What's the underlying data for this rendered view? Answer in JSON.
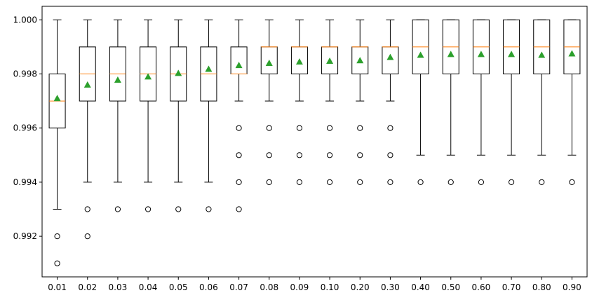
{
  "chart_data": {
    "type": "box",
    "title": "",
    "xlabel": "",
    "ylabel": "",
    "ylim": [
      0.9905,
      1.0005
    ],
    "grid": false,
    "yticks": [
      "0.992",
      "0.994",
      "0.996",
      "0.998",
      "1.000"
    ],
    "colors": {
      "median": "#ff7f0e",
      "mean": "#2ca02c",
      "box": "#000000"
    },
    "categories": [
      "0.01",
      "0.02",
      "0.03",
      "0.04",
      "0.05",
      "0.06",
      "0.07",
      "0.08",
      "0.09",
      "0.10",
      "0.20",
      "0.30",
      "0.40",
      "0.50",
      "0.60",
      "0.70",
      "0.80",
      "0.90"
    ],
    "boxes": [
      {
        "category": "0.01",
        "whisker_low": 0.993,
        "q1": 0.996,
        "median": 0.997,
        "q3": 0.998,
        "whisker_high": 1.0,
        "mean": 0.9971,
        "outliers": [
          0.992,
          0.991
        ]
      },
      {
        "category": "0.02",
        "whisker_low": 0.994,
        "q1": 0.997,
        "median": 0.998,
        "q3": 0.999,
        "whisker_high": 1.0,
        "mean": 0.9976,
        "outliers": [
          0.993,
          0.992
        ]
      },
      {
        "category": "0.03",
        "whisker_low": 0.994,
        "q1": 0.997,
        "median": 0.998,
        "q3": 0.999,
        "whisker_high": 1.0,
        "mean": 0.99778,
        "outliers": [
          0.993
        ]
      },
      {
        "category": "0.04",
        "whisker_low": 0.994,
        "q1": 0.997,
        "median": 0.998,
        "q3": 0.999,
        "whisker_high": 1.0,
        "mean": 0.9979,
        "outliers": [
          0.993
        ]
      },
      {
        "category": "0.05",
        "whisker_low": 0.994,
        "q1": 0.997,
        "median": 0.998,
        "q3": 0.999,
        "whisker_high": 1.0,
        "mean": 0.99803,
        "outliers": [
          0.993
        ]
      },
      {
        "category": "0.06",
        "whisker_low": 0.994,
        "q1": 0.997,
        "median": 0.998,
        "q3": 0.999,
        "whisker_high": 1.0,
        "mean": 0.99818,
        "outliers": [
          0.993
        ]
      },
      {
        "category": "0.07",
        "whisker_low": 0.997,
        "q1": 0.998,
        "median": 0.998,
        "q3": 0.999,
        "whisker_high": 1.0,
        "mean": 0.99832,
        "outliers": [
          0.996,
          0.995,
          0.994,
          0.993
        ]
      },
      {
        "category": "0.08",
        "whisker_low": 0.997,
        "q1": 0.998,
        "median": 0.999,
        "q3": 0.999,
        "whisker_high": 1.0,
        "mean": 0.9984,
        "outliers": [
          0.996,
          0.995,
          0.994
        ]
      },
      {
        "category": "0.09",
        "whisker_low": 0.997,
        "q1": 0.998,
        "median": 0.999,
        "q3": 0.999,
        "whisker_high": 1.0,
        "mean": 0.99845,
        "outliers": [
          0.996,
          0.995,
          0.994
        ]
      },
      {
        "category": "0.10",
        "whisker_low": 0.997,
        "q1": 0.998,
        "median": 0.999,
        "q3": 0.999,
        "whisker_high": 1.0,
        "mean": 0.99848,
        "outliers": [
          0.996,
          0.995,
          0.994
        ]
      },
      {
        "category": "0.20",
        "whisker_low": 0.997,
        "q1": 0.998,
        "median": 0.999,
        "q3": 0.999,
        "whisker_high": 1.0,
        "mean": 0.9985,
        "outliers": [
          0.996,
          0.995,
          0.994
        ]
      },
      {
        "category": "0.30",
        "whisker_low": 0.997,
        "q1": 0.998,
        "median": 0.999,
        "q3": 0.999,
        "whisker_high": 1.0,
        "mean": 0.99862,
        "outliers": [
          0.996,
          0.995,
          0.994
        ]
      },
      {
        "category": "0.40",
        "whisker_low": 0.995,
        "q1": 0.998,
        "median": 0.999,
        "q3": 1.0,
        "whisker_high": 1.0,
        "mean": 0.9987,
        "outliers": [
          0.994
        ]
      },
      {
        "category": "0.50",
        "whisker_low": 0.995,
        "q1": 0.998,
        "median": 0.999,
        "q3": 1.0,
        "whisker_high": 1.0,
        "mean": 0.99873,
        "outliers": [
          0.994
        ]
      },
      {
        "category": "0.60",
        "whisker_low": 0.995,
        "q1": 0.998,
        "median": 0.999,
        "q3": 1.0,
        "whisker_high": 1.0,
        "mean": 0.99873,
        "outliers": [
          0.994
        ]
      },
      {
        "category": "0.70",
        "whisker_low": 0.995,
        "q1": 0.998,
        "median": 0.999,
        "q3": 1.0,
        "whisker_high": 1.0,
        "mean": 0.99873,
        "outliers": [
          0.994
        ]
      },
      {
        "category": "0.80",
        "whisker_low": 0.995,
        "q1": 0.998,
        "median": 0.999,
        "q3": 1.0,
        "whisker_high": 1.0,
        "mean": 0.9987,
        "outliers": [
          0.994
        ]
      },
      {
        "category": "0.90",
        "whisker_low": 0.995,
        "q1": 0.998,
        "median": 0.999,
        "q3": 1.0,
        "whisker_high": 1.0,
        "mean": 0.99875,
        "outliers": [
          0.994
        ]
      }
    ]
  }
}
